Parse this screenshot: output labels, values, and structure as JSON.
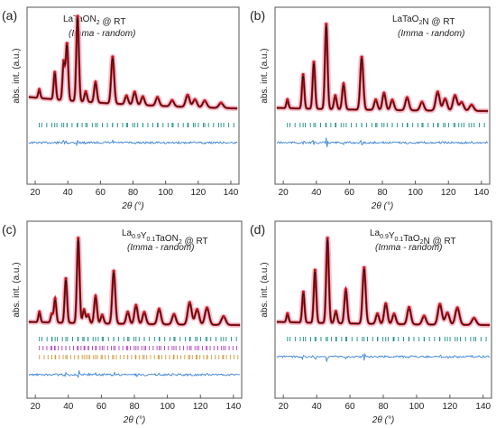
{
  "colors": {
    "observed": "#c0141b",
    "calculated": "#111111",
    "halo": "#f2b7c8",
    "difference": "#3f86d6",
    "bragg_main": "#178c83",
    "bragg_second": "#b03cc0",
    "bragg_third": "#d39b3d",
    "frame": "#555555"
  },
  "chart_data": [
    {
      "type": "line",
      "panel_label": "(a)",
      "title": "LaTaON2 @ RT",
      "subtitle": "(Imma - random)",
      "xlabel": "2θ (°)",
      "ylabel": "abs. int. (a.u.)",
      "xlim": [
        15,
        145
      ],
      "xticks": [
        20,
        40,
        60,
        80,
        100,
        120,
        140
      ],
      "baseline": 0.18,
      "peaks": [
        {
          "x": 22.5,
          "y": 0.1
        },
        {
          "x": 32.0,
          "y": 0.32
        },
        {
          "x": 37.5,
          "y": 0.45
        },
        {
          "x": 39.5,
          "y": 0.66
        },
        {
          "x": 46.0,
          "y": 1.0
        },
        {
          "x": 51.0,
          "y": 0.12
        },
        {
          "x": 57.0,
          "y": 0.24
        },
        {
          "x": 67.5,
          "y": 0.55
        },
        {
          "x": 76.0,
          "y": 0.1
        },
        {
          "x": 81.0,
          "y": 0.15
        },
        {
          "x": 86.0,
          "y": 0.1
        },
        {
          "x": 95.0,
          "y": 0.1
        },
        {
          "x": 104.0,
          "y": 0.07
        },
        {
          "x": 113.5,
          "y": 0.14
        },
        {
          "x": 118.0,
          "y": 0.09
        },
        {
          "x": 124.0,
          "y": 0.08
        },
        {
          "x": 134.0,
          "y": 0.06
        }
      ],
      "bragg_rows": 1
    },
    {
      "type": "line",
      "panel_label": "(b)",
      "title": "LaTaO2N @ RT",
      "subtitle": "(Imma - random)",
      "xlabel": "2θ (°)",
      "ylabel": "abs. int. (a.u.)",
      "xlim": [
        15,
        145
      ],
      "xticks": [
        20,
        40,
        60,
        80,
        100,
        120,
        140
      ],
      "baseline": 0.05,
      "peaks": [
        {
          "x": 22.5,
          "y": 0.1
        },
        {
          "x": 32.0,
          "y": 0.4
        },
        {
          "x": 38.5,
          "y": 0.55
        },
        {
          "x": 46.0,
          "y": 1.0
        },
        {
          "x": 51.5,
          "y": 0.16
        },
        {
          "x": 56.5,
          "y": 0.3
        },
        {
          "x": 67.5,
          "y": 0.62
        },
        {
          "x": 76.0,
          "y": 0.12
        },
        {
          "x": 81.0,
          "y": 0.2
        },
        {
          "x": 86.0,
          "y": 0.12
        },
        {
          "x": 95.0,
          "y": 0.15
        },
        {
          "x": 104.0,
          "y": 0.1
        },
        {
          "x": 113.5,
          "y": 0.22
        },
        {
          "x": 118.0,
          "y": 0.14
        },
        {
          "x": 124.0,
          "y": 0.18
        },
        {
          "x": 128.0,
          "y": 0.1
        },
        {
          "x": 134.0,
          "y": 0.07
        }
      ],
      "bragg_rows": 1
    },
    {
      "type": "line",
      "panel_label": "(c)",
      "title": "La0.9Y0.1TaON2 @ RT",
      "subtitle": "(Imma - random)",
      "xlabel": "2θ (°)",
      "ylabel": "abs. int. (a.u.)",
      "xlim": [
        15,
        145
      ],
      "xticks": [
        20,
        40,
        60,
        80,
        100,
        120,
        140
      ],
      "baseline": 0.05,
      "peaks": [
        {
          "x": 22.5,
          "y": 0.12
        },
        {
          "x": 30.0,
          "y": 0.1
        },
        {
          "x": 32.0,
          "y": 0.28
        },
        {
          "x": 38.5,
          "y": 0.52
        },
        {
          "x": 46.0,
          "y": 1.0
        },
        {
          "x": 49.5,
          "y": 0.16
        },
        {
          "x": 52.0,
          "y": 0.1
        },
        {
          "x": 56.5,
          "y": 0.32
        },
        {
          "x": 60.5,
          "y": 0.1
        },
        {
          "x": 67.5,
          "y": 0.62
        },
        {
          "x": 76.0,
          "y": 0.14
        },
        {
          "x": 81.0,
          "y": 0.22
        },
        {
          "x": 86.0,
          "y": 0.14
        },
        {
          "x": 95.0,
          "y": 0.18
        },
        {
          "x": 104.0,
          "y": 0.12
        },
        {
          "x": 113.5,
          "y": 0.26
        },
        {
          "x": 118.0,
          "y": 0.18
        },
        {
          "x": 124.0,
          "y": 0.2
        },
        {
          "x": 134.0,
          "y": 0.1
        }
      ],
      "bragg_rows": 3
    },
    {
      "type": "line",
      "panel_label": "(d)",
      "title": "La0.9Y0.1TaO2N @ RT",
      "subtitle": "(Imma - random)",
      "xlabel": "2θ (°)",
      "ylabel": "abs. int. (a.u.)",
      "xlim": [
        15,
        145
      ],
      "xticks": [
        20,
        40,
        60,
        80,
        100,
        120,
        140
      ],
      "baseline": 0.05,
      "peaks": [
        {
          "x": 22.5,
          "y": 0.1
        },
        {
          "x": 32.0,
          "y": 0.36
        },
        {
          "x": 39.0,
          "y": 0.62
        },
        {
          "x": 46.5,
          "y": 1.0
        },
        {
          "x": 51.5,
          "y": 0.14
        },
        {
          "x": 57.5,
          "y": 0.4
        },
        {
          "x": 68.5,
          "y": 0.66
        },
        {
          "x": 76.5,
          "y": 0.12
        },
        {
          "x": 81.5,
          "y": 0.24
        },
        {
          "x": 86.5,
          "y": 0.12
        },
        {
          "x": 95.5,
          "y": 0.2
        },
        {
          "x": 104.5,
          "y": 0.1
        },
        {
          "x": 114.0,
          "y": 0.24
        },
        {
          "x": 118.5,
          "y": 0.14
        },
        {
          "x": 124.5,
          "y": 0.2
        },
        {
          "x": 134.5,
          "y": 0.08
        }
      ],
      "bragg_rows": 1
    }
  ]
}
